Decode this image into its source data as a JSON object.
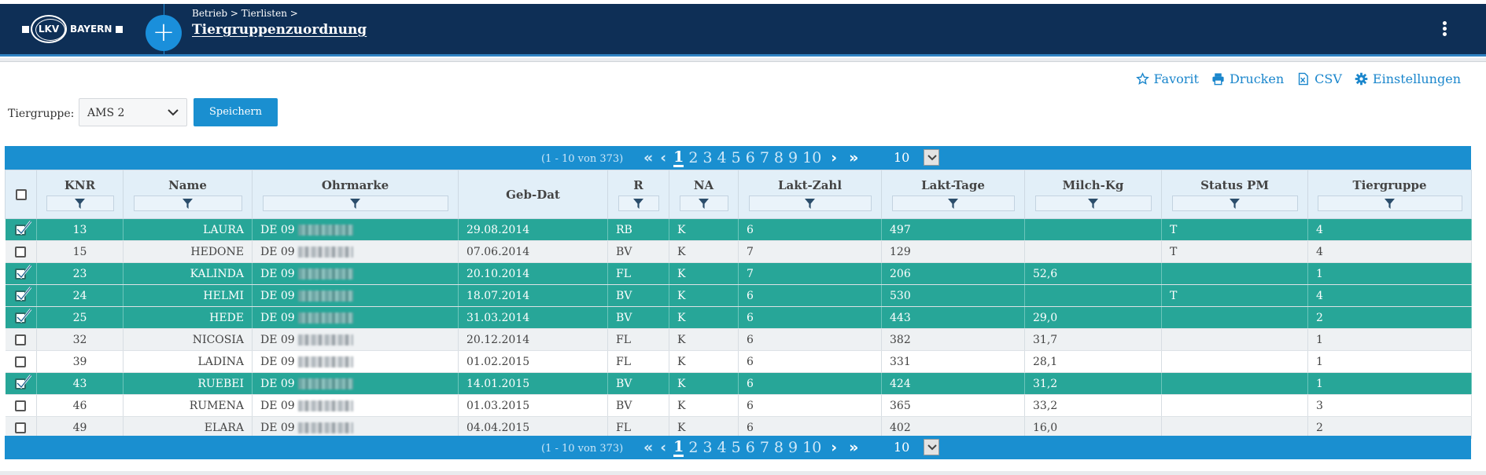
{
  "header": {
    "brand": "BAYERN",
    "logo_text": "LKV",
    "breadcrumb": "Betrieb > Tierlisten >",
    "title": "Tiergruppenzuordnung"
  },
  "actions": [
    {
      "label": "Favorit",
      "icon": "star-icon"
    },
    {
      "label": "Drucken",
      "icon": "printer-icon"
    },
    {
      "label": "CSV",
      "icon": "csv-file-icon"
    },
    {
      "label": "Einstellungen",
      "icon": "gear-icon"
    }
  ],
  "filter": {
    "label": "Tiergruppe:",
    "selected": "AMS 2",
    "save_label": "Speichern"
  },
  "pager": {
    "count_text": "(1 - 10 von 373)",
    "pages": [
      "1",
      "2",
      "3",
      "4",
      "5",
      "6",
      "7",
      "8",
      "9",
      "10"
    ],
    "current_page": "1",
    "page_size": "10"
  },
  "table": {
    "columns": [
      "",
      "KNR",
      "Name",
      "Ohrmarke",
      "Geb-Dat",
      "R",
      "NA",
      "Lakt-Zahl",
      "Lakt-Tage",
      "Milch-Kg",
      "Status PM",
      "Tiergruppe"
    ],
    "rows": [
      {
        "checked": true,
        "knr": "13",
        "name": "LAURA",
        "ohrmarke": "DE 09",
        "gebdat": "29.08.2014",
        "r": "RB",
        "na": "K",
        "laktzahl": "6",
        "lakttage": "497",
        "milch": "",
        "status": "T",
        "gruppe": "4"
      },
      {
        "checked": false,
        "knr": "15",
        "name": "HEDONE",
        "ohrmarke": "DE 09",
        "gebdat": "07.06.2014",
        "r": "BV",
        "na": "K",
        "laktzahl": "7",
        "lakttage": "129",
        "milch": "",
        "status": "T",
        "gruppe": "4"
      },
      {
        "checked": true,
        "knr": "23",
        "name": "KALINDA",
        "ohrmarke": "DE 09",
        "gebdat": "20.10.2014",
        "r": "FL",
        "na": "K",
        "laktzahl": "7",
        "lakttage": "206",
        "milch": "52,6",
        "status": "",
        "gruppe": "1"
      },
      {
        "checked": true,
        "knr": "24",
        "name": "HELMI",
        "ohrmarke": "DE 09",
        "gebdat": "18.07.2014",
        "r": "BV",
        "na": "K",
        "laktzahl": "6",
        "lakttage": "530",
        "milch": "",
        "status": "T",
        "gruppe": "4"
      },
      {
        "checked": true,
        "knr": "25",
        "name": "HEDE",
        "ohrmarke": "DE 09",
        "gebdat": "31.03.2014",
        "r": "BV",
        "na": "K",
        "laktzahl": "6",
        "lakttage": "443",
        "milch": "29,0",
        "status": "",
        "gruppe": "2"
      },
      {
        "checked": false,
        "knr": "32",
        "name": "NICOSIA",
        "ohrmarke": "DE 09",
        "gebdat": "20.12.2014",
        "r": "FL",
        "na": "K",
        "laktzahl": "6",
        "lakttage": "382",
        "milch": "31,7",
        "status": "",
        "gruppe": "1"
      },
      {
        "checked": false,
        "knr": "39",
        "name": "LADINA",
        "ohrmarke": "DE 09",
        "gebdat": "01.02.2015",
        "r": "FL",
        "na": "K",
        "laktzahl": "6",
        "lakttage": "331",
        "milch": "28,1",
        "status": "",
        "gruppe": "1"
      },
      {
        "checked": true,
        "knr": "43",
        "name": "RUEBEI",
        "ohrmarke": "DE 09",
        "gebdat": "14.01.2015",
        "r": "BV",
        "na": "K",
        "laktzahl": "6",
        "lakttage": "424",
        "milch": "31,2",
        "status": "",
        "gruppe": "1"
      },
      {
        "checked": false,
        "knr": "46",
        "name": "RUMENA",
        "ohrmarke": "DE 09",
        "gebdat": "01.03.2015",
        "r": "BV",
        "na": "K",
        "laktzahl": "6",
        "lakttage": "365",
        "milch": "33,2",
        "status": "",
        "gruppe": "3"
      },
      {
        "checked": false,
        "knr": "49",
        "name": "ELARA",
        "ohrmarke": "DE 09",
        "gebdat": "04.04.2015",
        "r": "FL",
        "na": "K",
        "laktzahl": "6",
        "lakttage": "402",
        "milch": "16,0",
        "status": "",
        "gruppe": "2"
      }
    ]
  },
  "colors": {
    "header_bg": "#0e2f56",
    "accent": "#1a8fd0",
    "selected_row": "#27a698"
  }
}
